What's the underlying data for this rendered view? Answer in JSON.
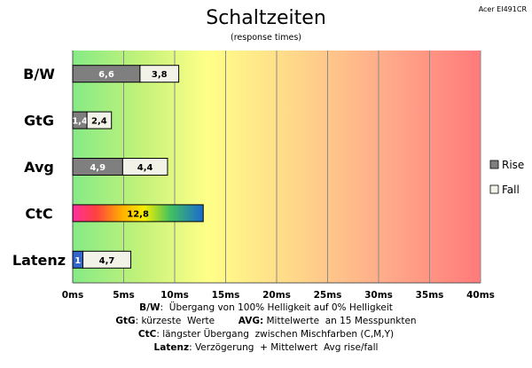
{
  "chart_data": {
    "type": "bar",
    "orientation": "horizontal",
    "stacked": true,
    "title": "Schaltzeiten",
    "subtitle": "(response times)",
    "corner_label": "Acer EI491CR",
    "categories": [
      "B/W",
      "GtG",
      "Avg",
      "CtC",
      "Latenz"
    ],
    "series": [
      {
        "name": "Rise",
        "color": "#7f7f7f",
        "values": [
          6.6,
          1.4,
          4.9,
          12.8,
          1.0
        ],
        "labels": [
          "6,6",
          "1,4",
          "4,9",
          "12,8",
          "1"
        ]
      },
      {
        "name": "Fall",
        "color": "#f2f2e8",
        "values": [
          3.8,
          2.4,
          4.4,
          null,
          4.7
        ],
        "labels": [
          "3,8",
          "2,4",
          "4,4",
          "",
          "4,7"
        ]
      }
    ],
    "ctc_style": "rainbow gradient",
    "latency_rise_color": "#3366cc",
    "xlim": [
      0,
      40
    ],
    "xticks": [
      "0ms",
      "5ms",
      "10ms",
      "15ms",
      "20ms",
      "25ms",
      "30ms",
      "35ms",
      "40ms"
    ],
    "xtick_values": [
      0,
      5,
      10,
      15,
      20,
      25,
      30,
      35,
      40
    ],
    "background": "gradient green-yellow-red",
    "legend": [
      "Rise",
      "Fall"
    ],
    "legend_placement": "right",
    "grid": true
  },
  "notes": [
    {
      "parts": [
        {
          "b": "B/W"
        },
        {
          "t": ":  Übergang von 100% Helligkeit auf 0% Helligkeit"
        }
      ]
    },
    {
      "parts": [
        {
          "b": "GtG"
        },
        {
          "t": ": kürzeste  Werte        "
        },
        {
          "b": "AVG:"
        },
        {
          "t": " Mittelwerte  an 15 Messpunkten"
        }
      ]
    },
    {
      "parts": [
        {
          "b": "CtC"
        },
        {
          "t": ": längster Übergang  zwischen Mischfarben (C,M,Y)"
        }
      ]
    },
    {
      "parts": [
        {
          "b": "Latenz"
        },
        {
          "t": ": Verzögerung  + Mittelwert  Avg rise/fall"
        }
      ]
    }
  ]
}
